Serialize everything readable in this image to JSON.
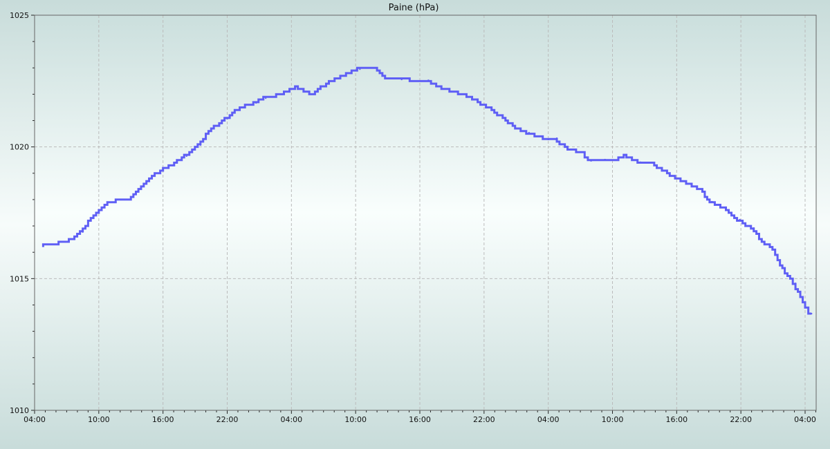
{
  "chart_data": {
    "type": "line",
    "title": "Paine (hPa)",
    "xlabel": "",
    "ylabel": "",
    "ylim": [
      1010,
      1025
    ],
    "y_ticks": [
      "1010",
      "1015",
      "1020",
      "1025"
    ],
    "x_ticks": [
      "04:00",
      "10:00",
      "16:00",
      "22:00",
      "04:00",
      "10:00",
      "16:00",
      "22:00",
      "04:00",
      "10:00",
      "16:00",
      "22:00",
      "04:00"
    ],
    "x_range": [
      "04:00",
      "05:00"
    ],
    "grid": true,
    "line_color": "#5f5ff5",
    "series": [
      {
        "points": [
          [
            "04:48",
            1016.24
          ],
          [
            "07:12",
            1016.4
          ],
          [
            "08:30",
            1016.77
          ],
          [
            "09:30",
            1017.3
          ],
          [
            "10:00",
            1017.5
          ],
          [
            "10:48",
            1017.84
          ],
          [
            "12:06",
            1018.0
          ],
          [
            "13:00",
            1018.0
          ],
          [
            "13:42",
            1018.3
          ],
          [
            "14:42",
            1018.7
          ],
          [
            "16:00",
            1019.13
          ],
          [
            "17:18",
            1019.4
          ],
          [
            "18:12",
            1019.65
          ],
          [
            "19:30",
            1020.07
          ],
          [
            "20:30",
            1020.6
          ],
          [
            "22:00",
            1021.07
          ],
          [
            "23:24",
            1021.5
          ],
          [
            "00:42",
            1021.67
          ],
          [
            "01:36",
            1021.85
          ],
          [
            "03:18",
            1022.0
          ],
          [
            "04:36",
            1022.25
          ],
          [
            "06:12",
            1022.0
          ],
          [
            "07:30",
            1022.43
          ],
          [
            "09:06",
            1022.7
          ],
          [
            "10:24",
            1022.95
          ],
          [
            "12:00",
            1023.0
          ],
          [
            "13:00",
            1022.6
          ],
          [
            "14:18",
            1022.56
          ],
          [
            "16:48",
            1022.53
          ],
          [
            "18:30",
            1022.2
          ],
          [
            "20:06",
            1022.0
          ],
          [
            "21:24",
            1021.77
          ],
          [
            "22:42",
            1021.46
          ],
          [
            "00:00",
            1021.1
          ],
          [
            "00:54",
            1020.78
          ],
          [
            "02:12",
            1020.54
          ],
          [
            "04:00",
            1020.28
          ],
          [
            "04:48",
            1020.33
          ],
          [
            "05:48",
            1019.96
          ],
          [
            "07:24",
            1019.75
          ],
          [
            "08:00",
            1019.47
          ],
          [
            "09:18",
            1019.52
          ],
          [
            "10:18",
            1019.5
          ],
          [
            "11:18",
            1019.68
          ],
          [
            "12:36",
            1019.42
          ],
          [
            "13:54",
            1019.36
          ],
          [
            "15:06",
            1019.07
          ],
          [
            "16:06",
            1018.8
          ],
          [
            "17:24",
            1018.6
          ],
          [
            "18:24",
            1018.37
          ],
          [
            "19:18",
            1017.92
          ],
          [
            "20:36",
            1017.7
          ],
          [
            "21:54",
            1017.24
          ],
          [
            "23:12",
            1016.92
          ],
          [
            "00:12",
            1016.4
          ],
          [
            "01:12",
            1016.1
          ],
          [
            "02:06",
            1015.35
          ],
          [
            "03:06",
            1014.82
          ],
          [
            "04:00",
            1014.1
          ],
          [
            "04:36",
            1013.67
          ]
        ]
      }
    ]
  }
}
